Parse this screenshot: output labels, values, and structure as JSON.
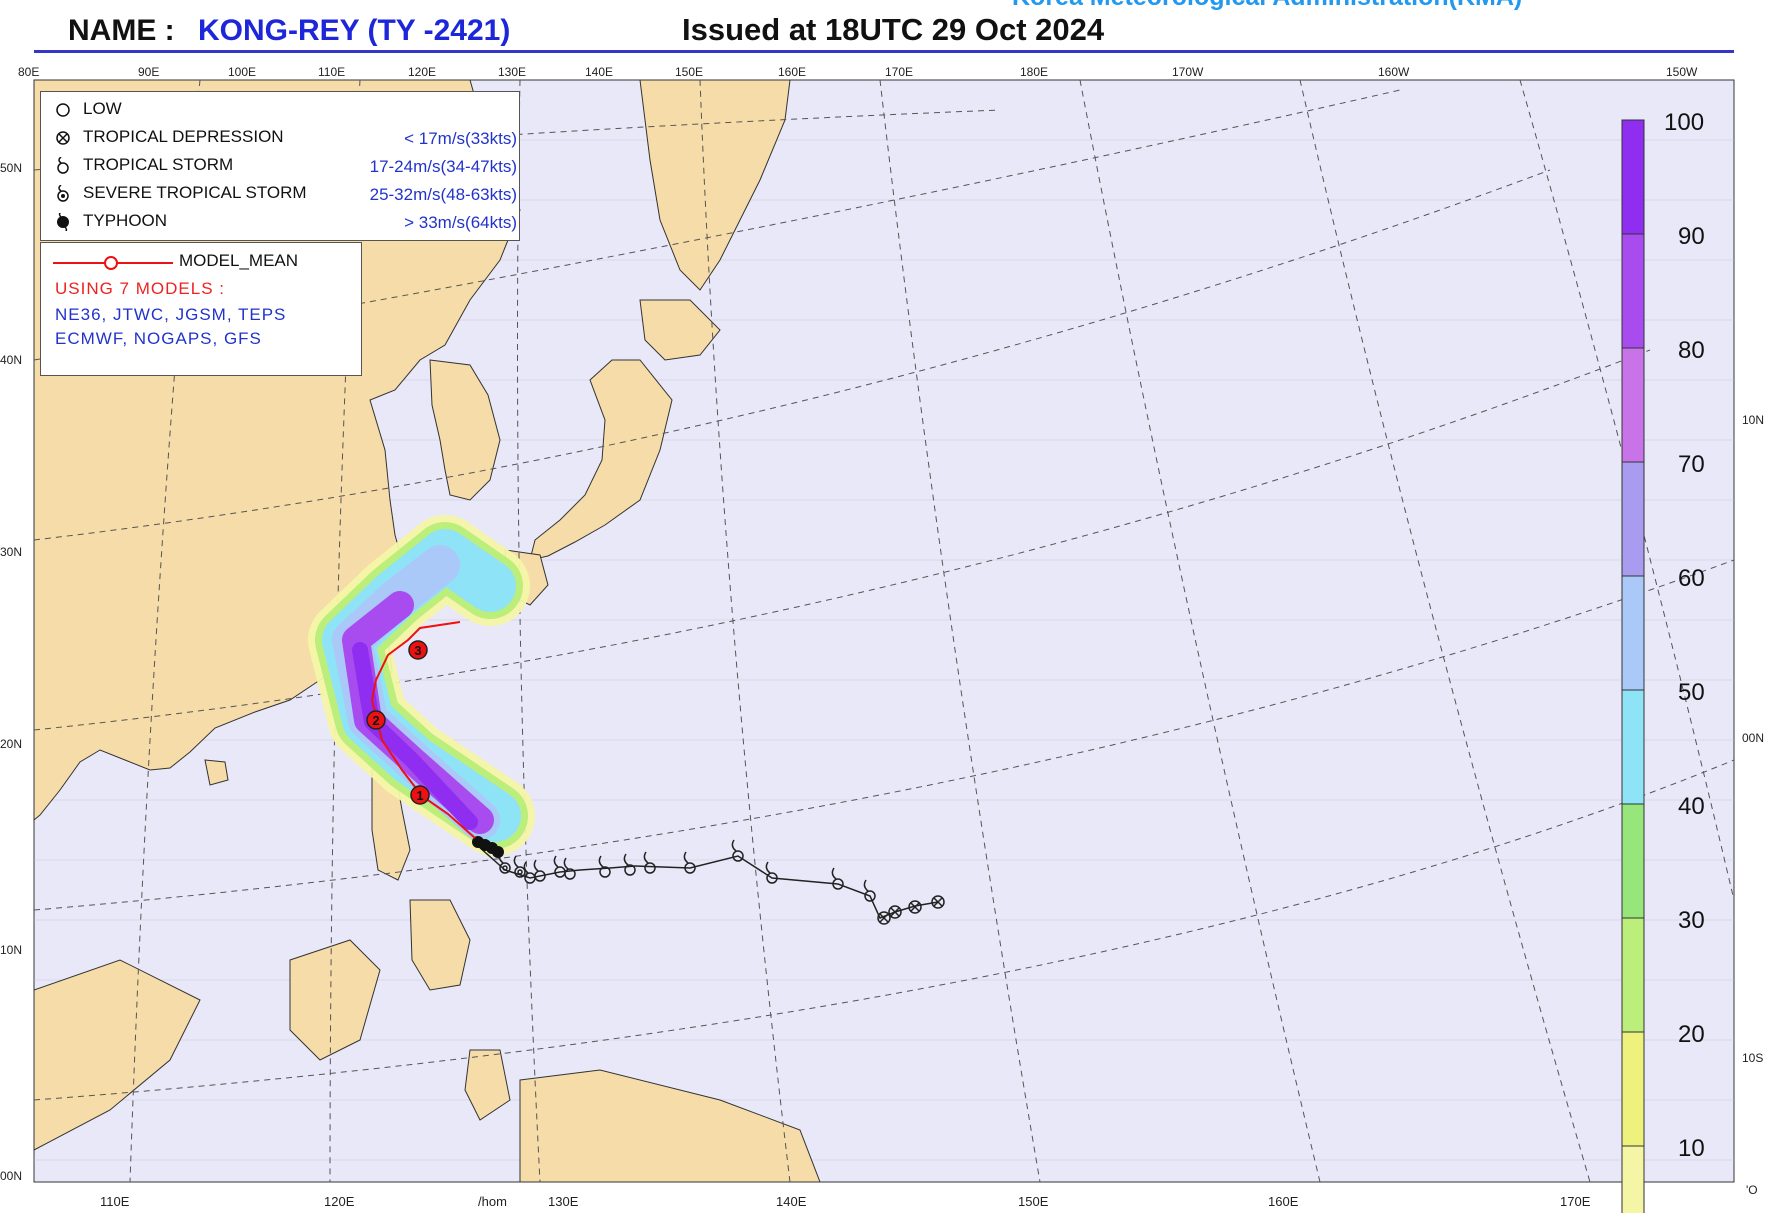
{
  "header": {
    "name_label": "NAME :",
    "storm": "KONG-REY (TY -2421)",
    "issued": "Issued at  18UTC 29 Oct 2024",
    "agency": "Korea Meteorological Administration(KMA)"
  },
  "axes": {
    "top_lon_labels": [
      "80E",
      "90E",
      "100E",
      "110E",
      "120E",
      "130E",
      "140E",
      "150E",
      "160E",
      "170E",
      "180E",
      "170W",
      "160W",
      "150W"
    ],
    "left_lat_labels": [
      "50N",
      "40N",
      "30N",
      "20N",
      "10N",
      "00N"
    ],
    "bottom_lon_labels": [
      "110E",
      "120E",
      "/hom",
      "130E",
      "140E",
      "150E",
      "160E",
      "170E"
    ],
    "right_lat_labels": [
      "10N",
      "00N",
      "10S",
      "'O"
    ]
  },
  "legend": {
    "rows": [
      {
        "icon": "low-icon",
        "label": "LOW",
        "speed": ""
      },
      {
        "icon": "tropical-depression-icon",
        "label": "TROPICAL DEPRESSION",
        "speed": "< 17m/s(33kts)"
      },
      {
        "icon": "tropical-storm-icon",
        "label": "TROPICAL STORM",
        "speed": "17-24m/s(34-47kts)"
      },
      {
        "icon": "severe-tropical-storm-icon",
        "label": "SEVERE TROPICAL STORM",
        "speed": "25-32m/s(48-63kts)"
      },
      {
        "icon": "typhoon-icon",
        "label": "TYPHOON",
        "speed": "> 33m/s(64kts)"
      }
    ]
  },
  "model_box": {
    "line_label": "MODEL_MEAN",
    "using": "USING  7 MODELS :",
    "models_line1": "NE36, JTWC, JGSM, TEPS",
    "models_line2": "ECMWF, NOGAPS, GFS"
  },
  "colorbar": {
    "ticks": [
      "100",
      "90",
      "80",
      "70",
      "60",
      "50",
      "40",
      "30",
      "20",
      "10"
    ],
    "colors": [
      "#8f2ef0",
      "#a84cf0",
      "#c873e8",
      "#a89bf0",
      "#aac8f8",
      "#8ee4f6",
      "#96e67c",
      "#bbee7a",
      "#eef27c",
      "#f4f6a6"
    ]
  },
  "track": {
    "mean_markers": [
      "1",
      "2",
      "3"
    ],
    "colors": {
      "land": "#f5dca8",
      "ocean": "#e9e8f8",
      "track": "#222222",
      "mean": "#ee1111"
    }
  }
}
